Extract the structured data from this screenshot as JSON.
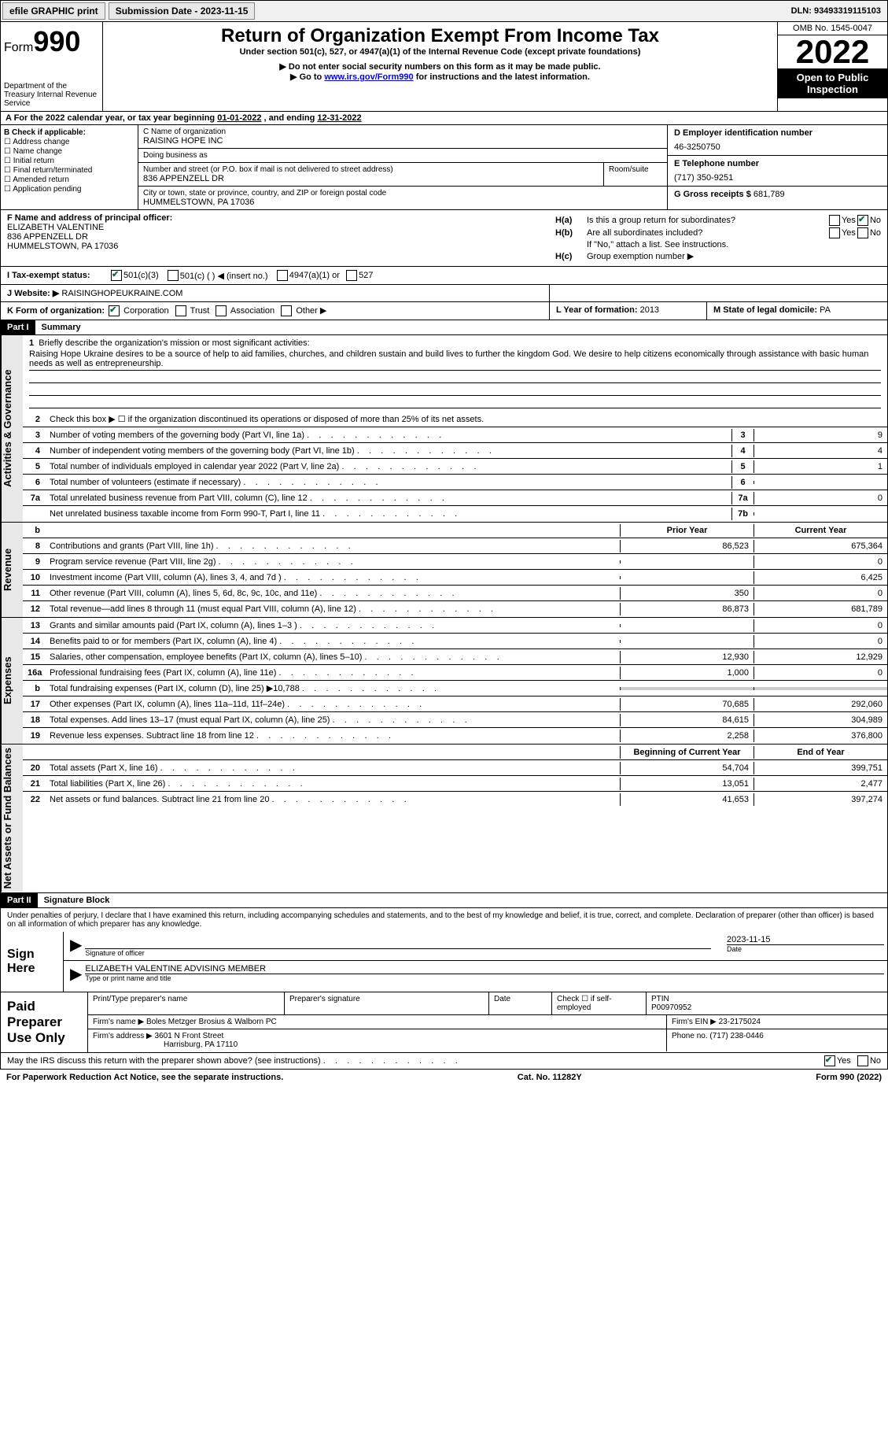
{
  "topbar": {
    "efile_label": "efile GRAPHIC print",
    "sub_label": "Submission Date - 2023-11-15",
    "dln": "DLN: 93493319115103"
  },
  "header": {
    "form_prefix": "Form",
    "form_number": "990",
    "dept": "Department of the Treasury Internal Revenue Service",
    "title": "Return of Organization Exempt From Income Tax",
    "subtitle": "Under section 501(c), 527, or 4947(a)(1) of the Internal Revenue Code (except private foundations)",
    "note1": "▶ Do not enter social security numbers on this form as it may be made public.",
    "note2_pre": "▶ Go to ",
    "note2_link": "www.irs.gov/Form990",
    "note2_post": " for instructions and the latest information.",
    "omb": "OMB No. 1545-0047",
    "year": "2022",
    "open_pub": "Open to Public Inspection"
  },
  "a": {
    "text_pre": "A For the 2022 calendar year, or tax year beginning ",
    "begin": "01-01-2022",
    "mid": " , and ending ",
    "end": "12-31-2022"
  },
  "b": {
    "header": "B Check if applicable:",
    "opts": [
      "Address change",
      "Name change",
      "Initial return",
      "Final return/terminated",
      "Amended return",
      "Application pending"
    ]
  },
  "c": {
    "name_label": "C Name of organization",
    "name": "RAISING HOPE INC",
    "dba_label": "Doing business as",
    "addr_label": "Number and street (or P.O. box if mail is not delivered to street address)",
    "room_label": "Room/suite",
    "addr": "836 APPENZELL DR",
    "city_label": "City or town, state or province, country, and ZIP or foreign postal code",
    "city": "HUMMELSTOWN, PA  17036"
  },
  "d": {
    "label": "D Employer identification number",
    "val": "46-3250750"
  },
  "e": {
    "label": "E Telephone number",
    "val": "(717) 350-9251"
  },
  "g": {
    "label": "G Gross receipts $",
    "val": "681,789"
  },
  "f": {
    "label": "F Name and address of principal officer:",
    "name": "ELIZABETH VALENTINE",
    "addr1": "836 APPENZELL DR",
    "addr2": "HUMMELSTOWN, PA  17036"
  },
  "h": {
    "a_label": "H(a)",
    "a_text": "Is this a group return for subordinates?",
    "b_label": "H(b)",
    "b_text": "Are all subordinates included?",
    "b_note": "If \"No,\" attach a list. See instructions.",
    "c_label": "H(c)",
    "c_text": "Group exemption number ▶",
    "yes": "Yes",
    "no": "No"
  },
  "i": {
    "label": "I   Tax-exempt status:",
    "opt1": "501(c)(3)",
    "opt2": "501(c) (  ) ◀ (insert no.)",
    "opt3": "4947(a)(1) or",
    "opt4": "527"
  },
  "j": {
    "label": "J   Website: ▶",
    "val": "RAISINGHOPEUKRAINE.COM"
  },
  "k": {
    "label": "K Form of organization:",
    "opts": [
      "Corporation",
      "Trust",
      "Association",
      "Other ▶"
    ]
  },
  "l": {
    "label": "L Year of formation:",
    "val": "2013"
  },
  "m": {
    "label": "M State of legal domicile:",
    "val": "PA"
  },
  "part1": {
    "label": "Part I",
    "title": "Summary"
  },
  "mission": {
    "num": "1",
    "label": "Briefly describe the organization's mission or most significant activities:",
    "text": "Raising Hope Ukraine desires to be a source of help to aid families, churches, and children sustain and build lives to further the kingdom God. We desire to help citizens economically through assistance with basic human needs as well as entrepreneurship."
  },
  "line2": {
    "num": "2",
    "text": "Check this box ▶ ☐ if the organization discontinued its operations or disposed of more than 25% of its net assets."
  },
  "sides": {
    "gov": "Activities & Governance",
    "rev": "Revenue",
    "exp": "Expenses",
    "net": "Net Assets or Fund Balances"
  },
  "gov_rows": [
    {
      "num": "3",
      "desc": "Number of voting members of the governing body (Part VI, line 1a)",
      "box": "3",
      "val": "9"
    },
    {
      "num": "4",
      "desc": "Number of independent voting members of the governing body (Part VI, line 1b)",
      "box": "4",
      "val": "4"
    },
    {
      "num": "5",
      "desc": "Total number of individuals employed in calendar year 2022 (Part V, line 2a)",
      "box": "5",
      "val": "1"
    },
    {
      "num": "6",
      "desc": "Total number of volunteers (estimate if necessary)",
      "box": "6",
      "val": ""
    },
    {
      "num": "7a",
      "desc": "Total unrelated business revenue from Part VIII, column (C), line 12",
      "box": "7a",
      "val": "0"
    },
    {
      "num": "",
      "desc": "Net unrelated business taxable income from Form 990-T, Part I, line 11",
      "box": "7b",
      "val": ""
    }
  ],
  "rev_hdr": {
    "b": "b",
    "prior": "Prior Year",
    "curr": "Current Year"
  },
  "rev_rows": [
    {
      "num": "8",
      "desc": "Contributions and grants (Part VIII, line 1h)",
      "prior": "86,523",
      "curr": "675,364"
    },
    {
      "num": "9",
      "desc": "Program service revenue (Part VIII, line 2g)",
      "prior": "",
      "curr": "0"
    },
    {
      "num": "10",
      "desc": "Investment income (Part VIII, column (A), lines 3, 4, and 7d )",
      "prior": "",
      "curr": "6,425"
    },
    {
      "num": "11",
      "desc": "Other revenue (Part VIII, column (A), lines 5, 6d, 8c, 9c, 10c, and 11e)",
      "prior": "350",
      "curr": "0"
    },
    {
      "num": "12",
      "desc": "Total revenue—add lines 8 through 11 (must equal Part VIII, column (A), line 12)",
      "prior": "86,873",
      "curr": "681,789"
    }
  ],
  "exp_rows": [
    {
      "num": "13",
      "desc": "Grants and similar amounts paid (Part IX, column (A), lines 1–3 )",
      "prior": "",
      "curr": "0"
    },
    {
      "num": "14",
      "desc": "Benefits paid to or for members (Part IX, column (A), line 4)",
      "prior": "",
      "curr": "0"
    },
    {
      "num": "15",
      "desc": "Salaries, other compensation, employee benefits (Part IX, column (A), lines 5–10)",
      "prior": "12,930",
      "curr": "12,929"
    },
    {
      "num": "16a",
      "desc": "Professional fundraising fees (Part IX, column (A), line 11e)",
      "prior": "1,000",
      "curr": "0"
    },
    {
      "num": "b",
      "desc": "Total fundraising expenses (Part IX, column (D), line 25) ▶10,788",
      "prior": "shade",
      "curr": "shade"
    },
    {
      "num": "17",
      "desc": "Other expenses (Part IX, column (A), lines 11a–11d, 11f–24e)",
      "prior": "70,685",
      "curr": "292,060"
    },
    {
      "num": "18",
      "desc": "Total expenses. Add lines 13–17 (must equal Part IX, column (A), line 25)",
      "prior": "84,615",
      "curr": "304,989"
    },
    {
      "num": "19",
      "desc": "Revenue less expenses. Subtract line 18 from line 12",
      "prior": "2,258",
      "curr": "376,800"
    }
  ],
  "net_hdr": {
    "prior": "Beginning of Current Year",
    "curr": "End of Year"
  },
  "net_rows": [
    {
      "num": "20",
      "desc": "Total assets (Part X, line 16)",
      "prior": "54,704",
      "curr": "399,751"
    },
    {
      "num": "21",
      "desc": "Total liabilities (Part X, line 26)",
      "prior": "13,051",
      "curr": "2,477"
    },
    {
      "num": "22",
      "desc": "Net assets or fund balances. Subtract line 21 from line 20",
      "prior": "41,653",
      "curr": "397,274"
    }
  ],
  "part2": {
    "label": "Part II",
    "title": "Signature Block"
  },
  "sig": {
    "declaration": "Under penalties of perjury, I declare that I have examined this return, including accompanying schedules and statements, and to the best of my knowledge and belief, it is true, correct, and complete. Declaration of preparer (other than officer) is based on all information of which preparer has any knowledge.",
    "sign_here": "Sign Here",
    "sig_officer": "Signature of officer",
    "date": "Date",
    "date_val": "2023-11-15",
    "name_title": "ELIZABETH VALENTINE  ADVISING MEMBER",
    "type_label": "Type or print name and title"
  },
  "prep": {
    "label": "Paid Preparer Use Only",
    "print_label": "Print/Type preparer's name",
    "sig_label": "Preparer's signature",
    "date_label": "Date",
    "check_label": "Check ☐ if self-employed",
    "ptin_label": "PTIN",
    "ptin": "P00970952",
    "firm_name_label": "Firm's name    ▶",
    "firm_name": "Boles Metzger Brosius & Walborn PC",
    "firm_ein_label": "Firm's EIN ▶",
    "firm_ein": "23-2175024",
    "firm_addr_label": "Firm's address ▶",
    "firm_addr1": "3601 N Front Street",
    "firm_addr2": "Harrisburg, PA  17110",
    "phone_label": "Phone no.",
    "phone": "(717) 238-0446"
  },
  "footer": {
    "discuss": "May the IRS discuss this return with the preparer shown above? (see instructions)",
    "yes": "Yes",
    "no": "No",
    "paperwork": "For Paperwork Reduction Act Notice, see the separate instructions.",
    "cat": "Cat. No. 11282Y",
    "form": "Form 990 (2022)"
  }
}
